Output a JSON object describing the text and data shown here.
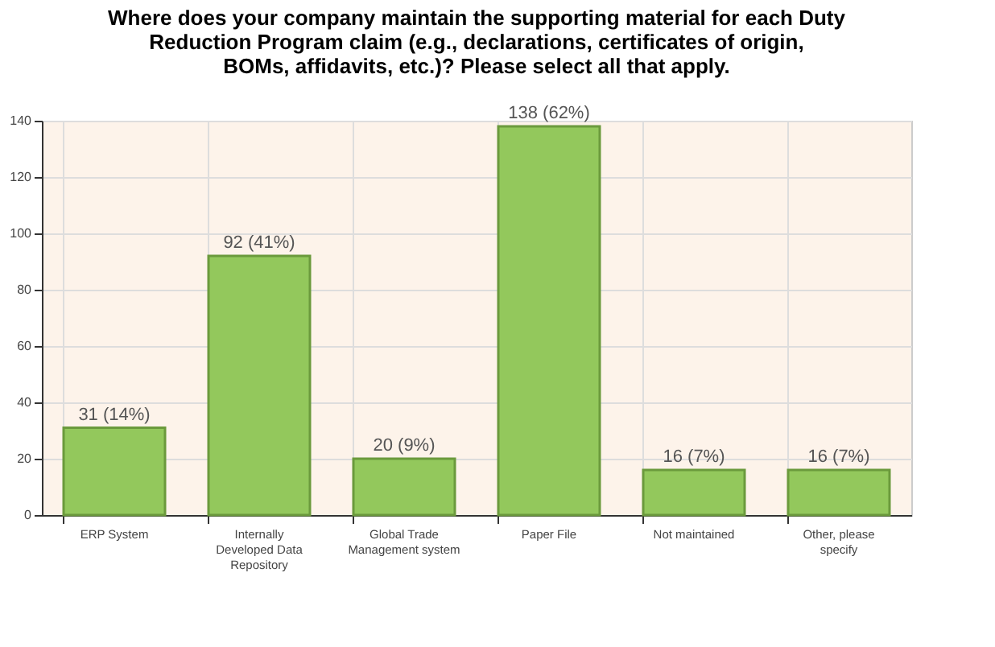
{
  "chart_data": {
    "type": "bar",
    "title": "Where does your company maintain the supporting material for each Duty Reduction Program claim (e.g., declarations, certificates of origin, BOMs, affidavits,  etc.)?  Please select all that apply.",
    "categories": [
      "ERP System",
      "Internally Developed Data Repository",
      "Global Trade Management system",
      "Paper File",
      "Not maintained",
      "Other, please specify"
    ],
    "values": [
      31,
      92,
      20,
      138,
      16,
      16
    ],
    "value_labels": [
      "31 (14%)",
      "92 (41%)",
      "20 (9%)",
      "138 (62%)",
      "16 (7%)",
      "16 (7%)"
    ],
    "color": "#93c85c",
    "ylim": [
      0,
      140
    ],
    "yticks": [
      0,
      20,
      40,
      60,
      80,
      100,
      120,
      140
    ],
    "grid": true
  }
}
